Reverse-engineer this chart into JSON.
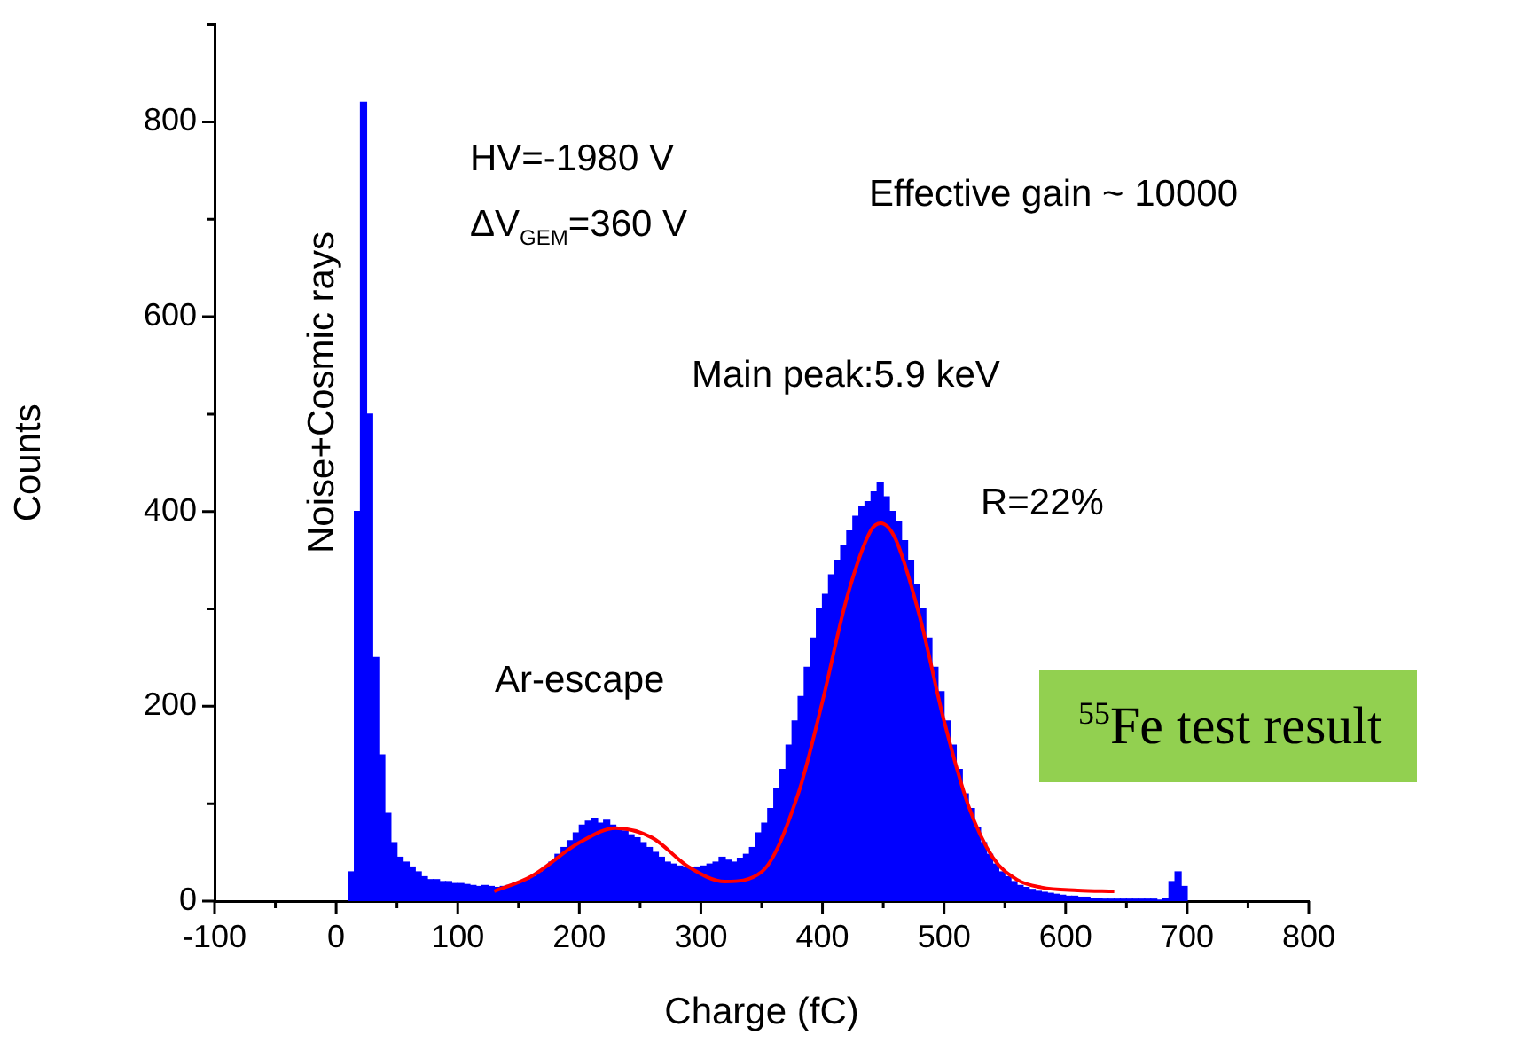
{
  "chart_data": {
    "type": "histogram",
    "xlabel": "Charge (fC)",
    "ylabel": "Counts",
    "color": "#0000ff",
    "bins": [
      10,
      15,
      20,
      25,
      30,
      35,
      40,
      45,
      50,
      55,
      60,
      65,
      70,
      75,
      80,
      85,
      90,
      95,
      100,
      105,
      110,
      115,
      120,
      125,
      130,
      135,
      140,
      145,
      150,
      155,
      160,
      165,
      170,
      175,
      180,
      185,
      190,
      195,
      200,
      205,
      210,
      215,
      220,
      225,
      230,
      235,
      240,
      245,
      250,
      255,
      260,
      265,
      270,
      275,
      280,
      285,
      290,
      295,
      300,
      305,
      310,
      315,
      320,
      325,
      330,
      335,
      340,
      345,
      350,
      355,
      360,
      365,
      370,
      375,
      380,
      385,
      390,
      395,
      400,
      405,
      410,
      415,
      420,
      425,
      430,
      435,
      440,
      445,
      450,
      455,
      460,
      465,
      470,
      475,
      480,
      485,
      490,
      495,
      500,
      505,
      510,
      515,
      520,
      525,
      530,
      535,
      540,
      545,
      550,
      555,
      560,
      565,
      570,
      575,
      580,
      585,
      590,
      595,
      600,
      605,
      610,
      615,
      620,
      625,
      630,
      635,
      640,
      645,
      650,
      655,
      660,
      665,
      670,
      675,
      680,
      685,
      690,
      695,
      700
    ],
    "values": [
      30,
      400,
      820,
      500,
      250,
      150,
      90,
      60,
      45,
      40,
      35,
      30,
      25,
      22,
      22,
      20,
      20,
      18,
      18,
      17,
      16,
      15,
      16,
      15,
      14,
      15,
      16,
      18,
      20,
      22,
      25,
      30,
      35,
      40,
      48,
      55,
      62,
      70,
      78,
      82,
      85,
      80,
      83,
      78,
      75,
      72,
      68,
      65,
      60,
      55,
      50,
      45,
      40,
      38,
      36,
      35,
      34,
      35,
      36,
      38,
      40,
      45,
      42,
      40,
      44,
      48,
      55,
      70,
      80,
      95,
      115,
      135,
      160,
      185,
      210,
      240,
      270,
      300,
      315,
      335,
      350,
      365,
      380,
      395,
      405,
      410,
      420,
      430,
      415,
      400,
      390,
      370,
      350,
      325,
      300,
      270,
      240,
      215,
      185,
      160,
      135,
      110,
      95,
      75,
      60,
      48,
      38,
      30,
      25,
      20,
      16,
      14,
      12,
      10,
      9,
      8,
      7,
      6,
      5,
      5,
      4,
      4,
      3,
      3,
      2,
      2,
      2,
      2,
      2,
      2,
      2,
      2,
      2,
      1,
      3,
      20,
      30,
      15
    ],
    "series": [
      {
        "type": "line",
        "color": "#ff0000",
        "x": [
          130,
          160,
          200,
          230,
          260,
          290,
          320,
          350,
          380,
          400,
          420,
          440,
          448,
          460,
          480,
          500,
          520,
          540,
          560,
          580,
          610,
          640
        ],
        "values": [
          10,
          25,
          60,
          75,
          65,
          35,
          20,
          30,
          110,
          205,
          311,
          381,
          388,
          372,
          292,
          185,
          98,
          45,
          22,
          14,
          11,
          10
        ]
      }
    ],
    "xlim": [
      -100,
      800
    ],
    "xticks": [
      -100,
      {
        "value": -50,
        "label": null
      },
      0,
      {
        "value": 50,
        "label": null
      },
      100,
      {
        "value": 150,
        "label": null
      },
      200,
      {
        "value": 250,
        "label": null
      },
      300,
      {
        "value": 350,
        "label": null
      },
      400,
      {
        "value": 450,
        "label": null
      },
      500,
      {
        "value": 550,
        "label": null
      },
      600,
      {
        "value": 650,
        "label": null
      },
      700,
      {
        "value": 750,
        "label": null
      },
      800
    ],
    "ylim": [
      0,
      900
    ],
    "yticks": [
      0,
      {
        "value": 100,
        "label": null
      },
      200,
      {
        "value": 300,
        "label": null
      },
      400,
      {
        "value": 500,
        "label": null
      },
      600,
      {
        "value": 700,
        "label": null
      },
      800,
      {
        "value": 900,
        "label": null
      }
    ],
    "grid": false,
    "legend": false,
    "marker": "none",
    "line_style": "solid",
    "annotations": [
      "Noise+Cosmic rays",
      "HV=-1980 V",
      "ΔV$_{GEM}$=360 V",
      "Effective gain ~ 10000",
      "Main peak:5.9 keV",
      "R=22%",
      "Ar-escape",
      "$^{55}$Fe test result"
    ]
  }
}
